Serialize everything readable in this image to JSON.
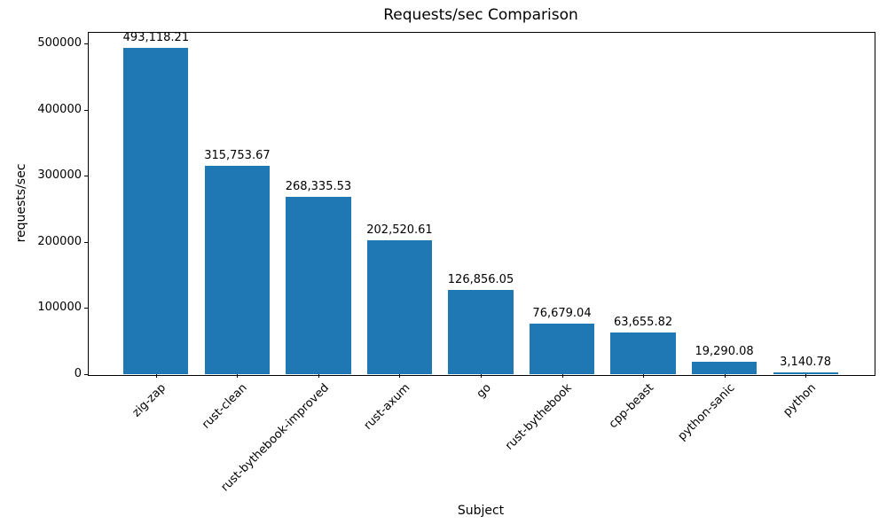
{
  "chart_data": {
    "type": "bar",
    "title": "Requests/sec Comparison",
    "xlabel": "Subject",
    "ylabel": "requests/sec",
    "categories": [
      "zig-zap",
      "rust-clean",
      "rust-bythebook-improved",
      "rust-axum",
      "go",
      "rust-bythebook",
      "cpp-beast",
      "python-sanic",
      "python"
    ],
    "values": [
      493118.21,
      315753.67,
      268335.53,
      202520.61,
      126856.05,
      76679.04,
      63655.82,
      19290.08,
      3140.78
    ],
    "value_labels": [
      "493,118.21",
      "315,753.67",
      "268,335.53",
      "202,520.61",
      "126,856.05",
      "76,679.04",
      "63,655.82",
      "19,290.08",
      "3,140.78"
    ],
    "bar_color": "#1f77b4",
    "text_color": "#000000",
    "ylim": [
      0,
      517774
    ],
    "yticks": [
      0,
      100000,
      200000,
      300000,
      400000,
      500000
    ],
    "ytick_labels": [
      "0",
      "100000",
      "200000",
      "300000",
      "400000",
      "500000"
    ],
    "grid": false,
    "legend": "none",
    "x_tick_rotation_deg": 45
  }
}
